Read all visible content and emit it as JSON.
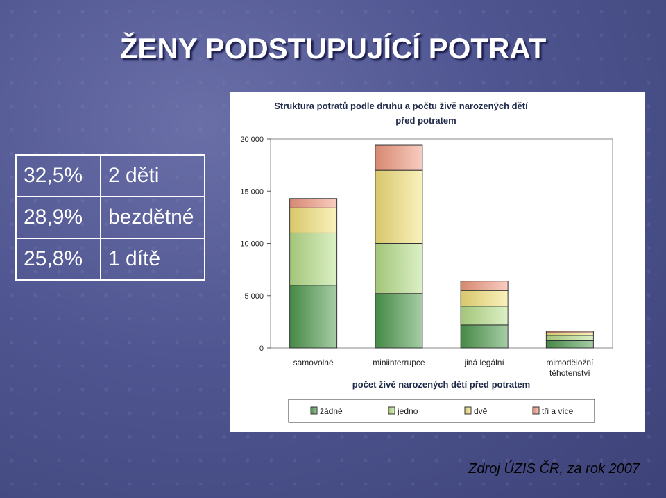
{
  "slide": {
    "title": "ŽENY PODSTUPUJÍCÍ POTRAT",
    "source": "Zdroj ÚZIS ČR, za rok 2007"
  },
  "stats_table": [
    {
      "percent": "32,5%",
      "label": "2 děti"
    },
    {
      "percent": "28,9%",
      "label": "bezdětné"
    },
    {
      "percent": "25,8%",
      "label": "1 dítě"
    }
  ],
  "chart_data": {
    "type": "bar",
    "stacked": true,
    "title_line1": "Struktura potratů podle druhu a počtu živě narozených dětí",
    "title_line2": "před potratem",
    "xlabel": "počet živě narozených dětí před potratem",
    "ylabel": "",
    "ylim": [
      0,
      20000
    ],
    "yticks": [
      0,
      5000,
      10000,
      15000,
      20000
    ],
    "ytick_labels": [
      "0",
      "5 000",
      "10 000",
      "15 000",
      "20 000"
    ],
    "grid": false,
    "legend_position": "bottom",
    "categories": [
      [
        "samovolné"
      ],
      [
        "miniinterrupce"
      ],
      [
        "jiná legální"
      ],
      [
        "mimoděložní",
        "těhotenství"
      ]
    ],
    "series": [
      {
        "name": "žádné",
        "color": "#4e9a4e",
        "values": [
          6000,
          5200,
          2200,
          700
        ]
      },
      {
        "name": "jedno",
        "color": "#b8e08a",
        "values": [
          5000,
          4800,
          1800,
          500
        ]
      },
      {
        "name": "dvě",
        "color": "#f5e27a",
        "values": [
          2400,
          7000,
          1500,
          250
        ]
      },
      {
        "name": "tři a více",
        "color": "#f39a80",
        "values": [
          900,
          2400,
          900,
          150
        ]
      }
    ]
  }
}
